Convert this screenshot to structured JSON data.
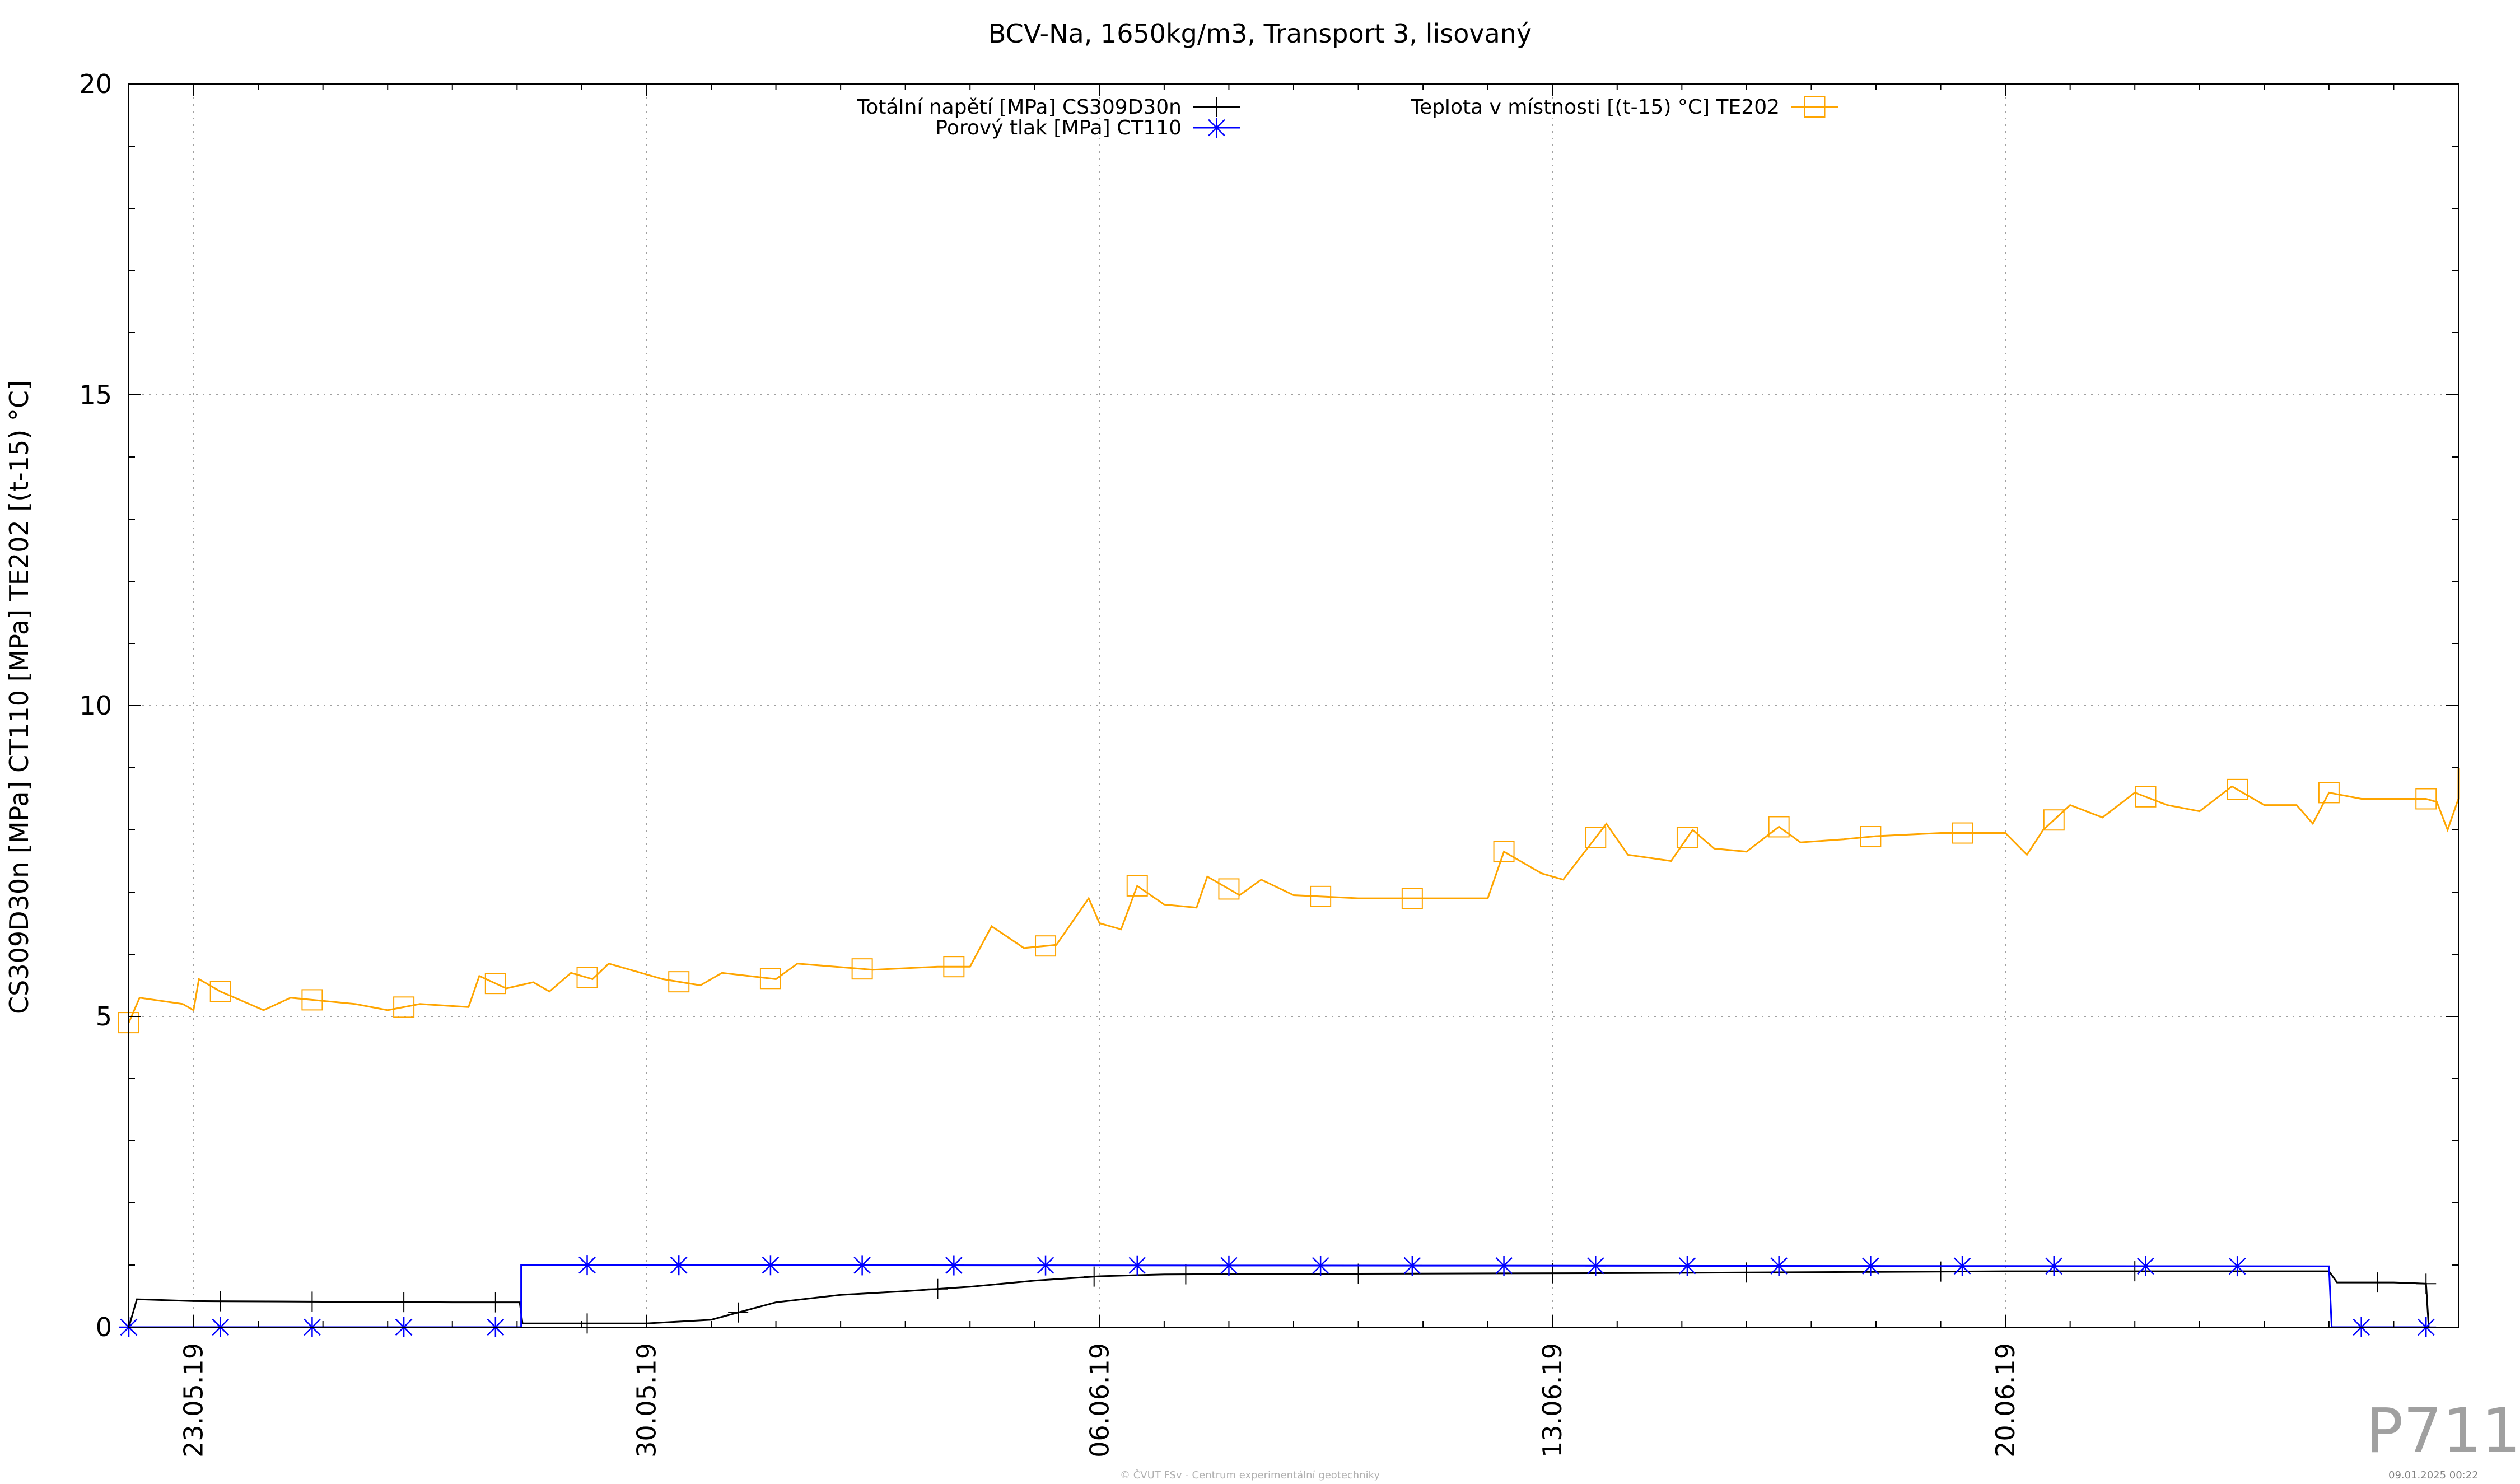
{
  "chart_data": {
    "type": "line",
    "title": "BCV-Na, 1650kg/m3, Transport 3, lisovaný",
    "xlabel": "",
    "ylabel": "CS309D30n [MPa] CT110 [MPa] TE202 [(t-15) °C]",
    "x_type": "date",
    "xlim": [
      "2019-05-22",
      "2019-06-27"
    ],
    "ylim": [
      0,
      20
    ],
    "y_ticks": [
      0,
      5,
      10,
      15,
      20
    ],
    "x_ticks": [
      {
        "date": "2019-05-23",
        "label": "23.05.19"
      },
      {
        "date": "2019-05-30",
        "label": "30.05.19"
      },
      {
        "date": "2019-06-06",
        "label": "06.06.19"
      },
      {
        "date": "2019-06-13",
        "label": "13.06.19"
      },
      {
        "date": "2019-06-20",
        "label": "20.06.19"
      }
    ],
    "grid": true,
    "legend": "top",
    "series": [
      {
        "name": "Totální napětí [MPa] CS309D30n",
        "color": "#000000",
        "marker": "plus",
        "points": [
          [
            "2019-05-22",
            0.0
          ],
          [
            "2019-05-22 03:00",
            0.45
          ],
          [
            "2019-05-23",
            0.42
          ],
          [
            "2019-05-25",
            0.41
          ],
          [
            "2019-05-27",
            0.4
          ],
          [
            "2019-05-28 01:00",
            0.4
          ],
          [
            "2019-05-28 02:00",
            0.06
          ],
          [
            "2019-05-30",
            0.06
          ],
          [
            "2019-05-31",
            0.12
          ],
          [
            "2019-06-01",
            0.4
          ],
          [
            "2019-06-02",
            0.52
          ],
          [
            "2019-06-03",
            0.58
          ],
          [
            "2019-06-04",
            0.65
          ],
          [
            "2019-06-05",
            0.75
          ],
          [
            "2019-06-06",
            0.82
          ],
          [
            "2019-06-07",
            0.85
          ],
          [
            "2019-06-10",
            0.86
          ],
          [
            "2019-06-14",
            0.87
          ],
          [
            "2019-06-18",
            0.89
          ],
          [
            "2019-06-20",
            0.9
          ],
          [
            "2019-06-25",
            0.9
          ],
          [
            "2019-06-25 03:00",
            0.72
          ],
          [
            "2019-06-26",
            0.72
          ],
          [
            "2019-06-26 12:00",
            0.7
          ],
          [
            "2019-06-26 13:00",
            0.0
          ]
        ],
        "markers": [
          "2019-05-22",
          "2019-05-23 10:00",
          "2019-05-24 20:00",
          "2019-05-26 06:00",
          "2019-05-27 16:00",
          "2019-05-29 02:00",
          "2019-05-31 10:00",
          "2019-06-03 12:00",
          "2019-06-05 22:00",
          "2019-06-07 08:00",
          "2019-06-10",
          "2019-06-13",
          "2019-06-16",
          "2019-06-19",
          "2019-06-22",
          "2019-06-25 18:00",
          "2019-06-26 12:00"
        ]
      },
      {
        "name": "Porový tlak [MPa] CT110",
        "color": "#0000ff",
        "marker": "star",
        "points": [
          [
            "2019-05-22",
            0.0
          ],
          [
            "2019-05-28 01:30",
            0.0
          ],
          [
            "2019-05-28 01:31",
            1.0
          ],
          [
            "2019-06-25",
            0.98
          ],
          [
            "2019-06-25 01:00",
            0.0
          ],
          [
            "2019-06-26 12:00",
            0.0
          ]
        ],
        "markers": [
          "2019-05-22",
          "2019-05-23 10:00",
          "2019-05-24 20:00",
          "2019-05-26 06:00",
          "2019-05-27 16:00",
          "2019-05-29 02:00",
          "2019-05-30 12:00",
          "2019-05-31 22:00",
          "2019-06-02 08:00",
          "2019-06-03 18:00",
          "2019-06-05 04:00",
          "2019-06-06 14:00",
          "2019-06-08",
          "2019-06-09 10:00",
          "2019-06-10 20:00",
          "2019-06-12 06:00",
          "2019-06-13 16:00",
          "2019-06-15 02:00",
          "2019-06-16 12:00",
          "2019-06-17 22:00",
          "2019-06-19 08:00",
          "2019-06-20 18:00",
          "2019-06-22 04:00",
          "2019-06-23 14:00",
          "2019-06-25 12:00",
          "2019-06-26 12:00"
        ]
      },
      {
        "name": "Teplota v místnosti [(t-15) °C] TE202",
        "color": "#ffa500",
        "marker": "square",
        "points": [
          [
            "2019-05-22",
            4.9
          ],
          [
            "2019-05-22 04:00",
            5.3
          ],
          [
            "2019-05-22 20:00",
            5.2
          ],
          [
            "2019-05-23 00:00",
            5.1
          ],
          [
            "2019-05-23 02:00",
            5.6
          ],
          [
            "2019-05-23 10:00",
            5.4
          ],
          [
            "2019-05-24 02:00",
            5.1
          ],
          [
            "2019-05-24 12:00",
            5.3
          ],
          [
            "2019-05-25 12:00",
            5.2
          ],
          [
            "2019-05-26 00:00",
            5.1
          ],
          [
            "2019-05-26 12:00",
            5.2
          ],
          [
            "2019-05-27 06:00",
            5.15
          ],
          [
            "2019-05-27 10:00",
            5.65
          ],
          [
            "2019-05-27 20:00",
            5.45
          ],
          [
            "2019-05-28 06:00",
            5.55
          ],
          [
            "2019-05-28 12:00",
            5.4
          ],
          [
            "2019-05-28 20:00",
            5.7
          ],
          [
            "2019-05-29 04:00",
            5.6
          ],
          [
            "2019-05-29 10:00",
            5.85
          ],
          [
            "2019-05-30 06:00",
            5.6
          ],
          [
            "2019-05-30 20:00",
            5.5
          ],
          [
            "2019-05-31 04:00",
            5.7
          ],
          [
            "2019-06-01 00:00",
            5.6
          ],
          [
            "2019-06-01 08:00",
            5.85
          ],
          [
            "2019-06-02 12:00",
            5.75
          ],
          [
            "2019-06-03 12:00",
            5.8
          ],
          [
            "2019-06-04 00:00",
            5.8
          ],
          [
            "2019-06-04 08:00",
            6.45
          ],
          [
            "2019-06-04 20:00",
            6.1
          ],
          [
            "2019-06-05 08:00",
            6.15
          ],
          [
            "2019-06-05 20:00",
            6.9
          ],
          [
            "2019-06-06 00:00",
            6.5
          ],
          [
            "2019-06-06 08:00",
            6.4
          ],
          [
            "2019-06-06 14:00",
            7.1
          ],
          [
            "2019-06-07 00:00",
            6.8
          ],
          [
            "2019-06-07 12:00",
            6.75
          ],
          [
            "2019-06-07 16:00",
            7.25
          ],
          [
            "2019-06-08 04:00",
            6.95
          ],
          [
            "2019-06-08 12:00",
            7.2
          ],
          [
            "2019-06-09 00:00",
            6.95
          ],
          [
            "2019-06-10 00:00",
            6.9
          ],
          [
            "2019-06-11 00:00",
            6.9
          ],
          [
            "2019-06-12 00:00",
            6.9
          ],
          [
            "2019-06-12 06:00",
            7.65
          ],
          [
            "2019-06-12 20:00",
            7.3
          ],
          [
            "2019-06-13 04:00",
            7.2
          ],
          [
            "2019-06-13 20:00",
            8.1
          ],
          [
            "2019-06-14 04:00",
            7.6
          ],
          [
            "2019-06-14 20:00",
            7.5
          ],
          [
            "2019-06-15 04:00",
            8.0
          ],
          [
            "2019-06-15 12:00",
            7.7
          ],
          [
            "2019-06-16 00:00",
            7.65
          ],
          [
            "2019-06-16 12:00",
            8.05
          ],
          [
            "2019-06-16 20:00",
            7.8
          ],
          [
            "2019-06-17 12:00",
            7.85
          ],
          [
            "2019-06-18 00:00",
            7.9
          ],
          [
            "2019-06-19 00:00",
            7.95
          ],
          [
            "2019-06-20 00:00",
            7.95
          ],
          [
            "2019-06-20 08:00",
            7.6
          ],
          [
            "2019-06-20 14:00",
            8.0
          ],
          [
            "2019-06-21 00:00",
            8.4
          ],
          [
            "2019-06-21 12:00",
            8.2
          ],
          [
            "2019-06-22 00:00",
            8.6
          ],
          [
            "2019-06-22 12:00",
            8.4
          ],
          [
            "2019-06-23 00:00",
            8.3
          ],
          [
            "2019-06-23 12:00",
            8.7
          ],
          [
            "2019-06-24 00:00",
            8.4
          ],
          [
            "2019-06-24 12:00",
            8.4
          ],
          [
            "2019-06-24 18:00",
            8.1
          ],
          [
            "2019-06-25 00:00",
            8.6
          ],
          [
            "2019-06-25 12:00",
            8.5
          ],
          [
            "2019-06-26 00:00",
            8.5
          ],
          [
            "2019-06-26 12:00",
            8.5
          ],
          [
            "2019-06-26 16:00",
            8.45
          ],
          [
            "2019-06-26 20:00",
            8.0
          ],
          [
            "2019-06-27 00:00",
            8.5
          ],
          [
            "2019-06-27 00:01",
            9.0
          ]
        ],
        "markers": [
          "2019-05-22",
          "2019-05-23 10:00",
          "2019-05-24 20:00",
          "2019-05-26 06:00",
          "2019-05-27 16:00",
          "2019-05-29 02:00",
          "2019-05-30 12:00",
          "2019-05-31 22:00",
          "2019-06-02 08:00",
          "2019-06-03 18:00",
          "2019-06-05 04:00",
          "2019-06-06 14:00",
          "2019-06-08",
          "2019-06-09 10:00",
          "2019-06-10 20:00",
          "2019-06-12 06:00",
          "2019-06-13 16:00",
          "2019-06-15 02:00",
          "2019-06-16 12:00",
          "2019-06-17 22:00",
          "2019-06-19 08:00",
          "2019-06-20 18:00",
          "2019-06-22 04:00",
          "2019-06-23 14:00",
          "2019-06-25",
          "2019-06-26 12:00"
        ]
      }
    ]
  },
  "watermark": {
    "code": "P711",
    "footer": "© ČVUT FSv - Centrum experimentální geotechniky",
    "date": "09.01.2025 00:22"
  }
}
